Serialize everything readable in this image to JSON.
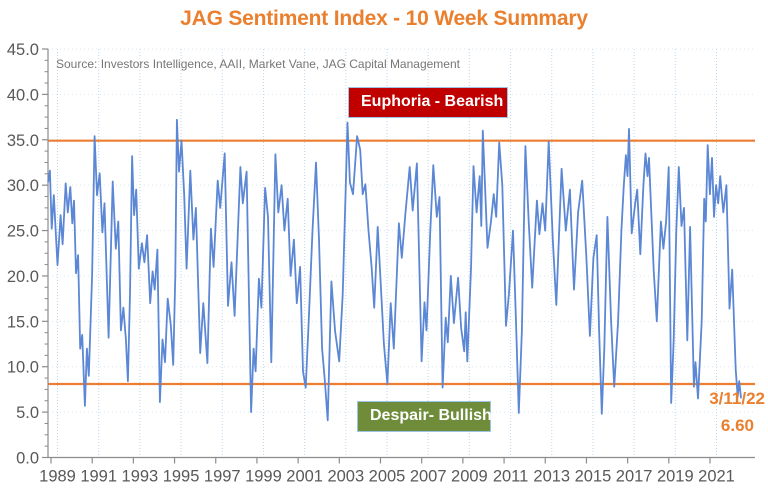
{
  "title": "JAG Sentiment Index - 10 Week Summary",
  "source_note": "Source: Investors Intelligence, AAII, Market Vane, JAG Capital Management",
  "colors": {
    "title_orange": "#EA7F2E",
    "threshold_orange": "#ED7D31",
    "series_blue": "#5B87D5",
    "euphoria_red": "#C00000",
    "despair_green": "#6F8C3B",
    "box_border_blue": "#9DC3E6",
    "grid_vertical": "#BDD7EE",
    "grid_horizontal": "#DAE7F5",
    "axis_gray": "#8C8C8C",
    "tick_label_gray": "#595959"
  },
  "annotation": {
    "date": "3/11/22",
    "value": "6.60"
  },
  "chart_data": {
    "type": "line",
    "title": "JAG Sentiment Index - 10 Week Summary",
    "xlabel": "",
    "ylabel": "",
    "x_ticks": [
      1989,
      1991,
      1993,
      1995,
      1997,
      1999,
      2001,
      2003,
      2005,
      2007,
      2009,
      2011,
      2013,
      2015,
      2017,
      2019,
      2021
    ],
    "y_ticks": [
      0,
      5,
      10,
      15,
      20,
      25,
      30,
      35,
      40,
      45
    ],
    "y_tick_labels": [
      "0.0",
      "5.0",
      "10.0",
      "15.0",
      "20.0",
      "25.0",
      "30.0",
      "35.0",
      "40.0",
      "45.0"
    ],
    "ylim": [
      0,
      45
    ],
    "xlim": [
      1988.5,
      2022.9
    ],
    "y_minor_step": 1.25,
    "grid": true,
    "legend_position": "none",
    "hlines": [
      {
        "name": "euphoria-threshold",
        "value": 34.9,
        "label": "Euphoria - Bearish"
      },
      {
        "name": "despair-threshold",
        "value": 8.1,
        "label": "Despair- Bullish"
      }
    ],
    "last_point": {
      "date": "3/11/22",
      "value": 6.6
    },
    "series": [
      {
        "name": "JAG Sentiment Index (10 week)",
        "points": [
          [
            1988.55,
            30.4
          ],
          [
            1988.63,
            31.6
          ],
          [
            1988.72,
            25.2
          ],
          [
            1988.82,
            28.9
          ],
          [
            1988.92,
            24.5
          ],
          [
            1989.0,
            21.2
          ],
          [
            1989.15,
            26.7
          ],
          [
            1989.25,
            23.5
          ],
          [
            1989.4,
            30.2
          ],
          [
            1989.5,
            27.0
          ],
          [
            1989.62,
            29.8
          ],
          [
            1989.72,
            25.8
          ],
          [
            1989.8,
            28.3
          ],
          [
            1989.9,
            20.3
          ],
          [
            1990.0,
            22.3
          ],
          [
            1990.1,
            12.0
          ],
          [
            1990.2,
            13.5
          ],
          [
            1990.33,
            5.7
          ],
          [
            1990.43,
            12.0
          ],
          [
            1990.52,
            9.0
          ],
          [
            1990.68,
            20.0
          ],
          [
            1990.8,
            35.4
          ],
          [
            1990.92,
            28.9
          ],
          [
            1991.05,
            31.3
          ],
          [
            1991.18,
            24.8
          ],
          [
            1991.28,
            28.0
          ],
          [
            1991.48,
            13.2
          ],
          [
            1991.68,
            30.4
          ],
          [
            1991.83,
            23.0
          ],
          [
            1991.95,
            26.0
          ],
          [
            1992.08,
            14.0
          ],
          [
            1992.2,
            16.5
          ],
          [
            1992.32,
            13.0
          ],
          [
            1992.42,
            8.4
          ],
          [
            1992.52,
            18.0
          ],
          [
            1992.62,
            33.2
          ],
          [
            1992.72,
            26.7
          ],
          [
            1992.82,
            29.5
          ],
          [
            1992.95,
            20.8
          ],
          [
            1993.1,
            23.6
          ],
          [
            1993.22,
            21.5
          ],
          [
            1993.35,
            24.5
          ],
          [
            1993.5,
            17.0
          ],
          [
            1993.62,
            20.5
          ],
          [
            1993.72,
            18.5
          ],
          [
            1993.85,
            22.9
          ],
          [
            1993.97,
            6.1
          ],
          [
            1994.1,
            13.0
          ],
          [
            1994.22,
            10.5
          ],
          [
            1994.35,
            17.5
          ],
          [
            1994.5,
            14.6
          ],
          [
            1994.62,
            10.2
          ],
          [
            1994.72,
            20.0
          ],
          [
            1994.8,
            37.2
          ],
          [
            1994.9,
            31.5
          ],
          [
            1995.02,
            34.9
          ],
          [
            1995.15,
            28.9
          ],
          [
            1995.27,
            20.8
          ],
          [
            1995.45,
            31.6
          ],
          [
            1995.6,
            24.0
          ],
          [
            1995.72,
            27.5
          ],
          [
            1995.93,
            11.5
          ],
          [
            1996.08,
            17.0
          ],
          [
            1996.28,
            10.4
          ],
          [
            1996.45,
            25.2
          ],
          [
            1996.58,
            21.0
          ],
          [
            1996.78,
            30.5
          ],
          [
            1996.9,
            27.5
          ],
          [
            1997.12,
            33.5
          ],
          [
            1997.28,
            16.7
          ],
          [
            1997.45,
            21.5
          ],
          [
            1997.6,
            15.6
          ],
          [
            1997.88,
            32.0
          ],
          [
            1998.0,
            28.0
          ],
          [
            1998.18,
            31.5
          ],
          [
            1998.4,
            5.0
          ],
          [
            1998.52,
            12.0
          ],
          [
            1998.62,
            9.5
          ],
          [
            1998.78,
            19.7
          ],
          [
            1998.9,
            16.5
          ],
          [
            1999.08,
            29.7
          ],
          [
            1999.22,
            26.5
          ],
          [
            1999.38,
            10.5
          ],
          [
            1999.58,
            33.4
          ],
          [
            1999.72,
            27.0
          ],
          [
            1999.88,
            30.0
          ],
          [
            2000.02,
            25.0
          ],
          [
            2000.18,
            28.5
          ],
          [
            2000.32,
            20.0
          ],
          [
            2000.48,
            24.0
          ],
          [
            2000.62,
            17.0
          ],
          [
            2000.78,
            21.0
          ],
          [
            2000.92,
            9.5
          ],
          [
            2001.05,
            7.7
          ],
          [
            2001.2,
            15.0
          ],
          [
            2001.38,
            25.0
          ],
          [
            2001.55,
            32.5
          ],
          [
            2001.7,
            24.0
          ],
          [
            2001.85,
            12.0
          ],
          [
            2001.98,
            8.5
          ],
          [
            2002.12,
            4.1
          ],
          [
            2002.3,
            19.4
          ],
          [
            2002.48,
            13.9
          ],
          [
            2002.68,
            10.6
          ],
          [
            2002.85,
            18.0
          ],
          [
            2003.0,
            30.0
          ],
          [
            2003.08,
            36.9
          ],
          [
            2003.2,
            30.3
          ],
          [
            2003.35,
            29.0
          ],
          [
            2003.55,
            35.4
          ],
          [
            2003.7,
            33.9
          ],
          [
            2003.82,
            29.0
          ],
          [
            2003.95,
            30.1
          ],
          [
            2004.1,
            25.0
          ],
          [
            2004.25,
            21.0
          ],
          [
            2004.38,
            16.5
          ],
          [
            2004.55,
            25.4
          ],
          [
            2004.7,
            19.0
          ],
          [
            2004.85,
            12.5
          ],
          [
            2005.02,
            8.1
          ],
          [
            2005.18,
            17.0
          ],
          [
            2005.33,
            12.0
          ],
          [
            2005.58,
            25.8
          ],
          [
            2005.72,
            22.0
          ],
          [
            2005.9,
            27.0
          ],
          [
            2006.1,
            32.0
          ],
          [
            2006.25,
            27.2
          ],
          [
            2006.45,
            32.4
          ],
          [
            2006.68,
            10.6
          ],
          [
            2006.82,
            17.1
          ],
          [
            2006.92,
            14.0
          ],
          [
            2007.1,
            25.0
          ],
          [
            2007.25,
            32.2
          ],
          [
            2007.42,
            26.5
          ],
          [
            2007.55,
            28.7
          ],
          [
            2007.7,
            7.7
          ],
          [
            2007.85,
            15.4
          ],
          [
            2007.95,
            12.7
          ],
          [
            2008.1,
            20.0
          ],
          [
            2008.25,
            14.8
          ],
          [
            2008.45,
            19.8
          ],
          [
            2008.6,
            14.3
          ],
          [
            2008.75,
            11.7
          ],
          [
            2008.82,
            16.0
          ],
          [
            2008.9,
            10.6
          ],
          [
            2009.08,
            20.8
          ],
          [
            2009.2,
            32.1
          ],
          [
            2009.35,
            27.0
          ],
          [
            2009.5,
            31.0
          ],
          [
            2009.58,
            25.5
          ],
          [
            2009.65,
            36.0
          ],
          [
            2009.88,
            23.1
          ],
          [
            2010.05,
            26.0
          ],
          [
            2010.18,
            29.0
          ],
          [
            2010.3,
            26.5
          ],
          [
            2010.45,
            34.7
          ],
          [
            2010.6,
            30.0
          ],
          [
            2010.78,
            14.5
          ],
          [
            2010.92,
            18.0
          ],
          [
            2011.0,
            20.9
          ],
          [
            2011.12,
            25.0
          ],
          [
            2011.25,
            16.0
          ],
          [
            2011.4,
            4.9
          ],
          [
            2011.55,
            14.0
          ],
          [
            2011.72,
            34.3
          ],
          [
            2011.88,
            26.0
          ],
          [
            2012.05,
            18.7
          ],
          [
            2012.28,
            28.3
          ],
          [
            2012.4,
            24.6
          ],
          [
            2012.55,
            28.0
          ],
          [
            2012.68,
            25.0
          ],
          [
            2012.85,
            34.8
          ],
          [
            2013.05,
            24.0
          ],
          [
            2013.22,
            16.8
          ],
          [
            2013.48,
            31.8
          ],
          [
            2013.68,
            25.0
          ],
          [
            2013.88,
            29.5
          ],
          [
            2014.08,
            18.5
          ],
          [
            2014.28,
            27.0
          ],
          [
            2014.48,
            30.5
          ],
          [
            2014.68,
            22.0
          ],
          [
            2014.85,
            13.4
          ],
          [
            2015.02,
            22.0
          ],
          [
            2015.18,
            24.5
          ],
          [
            2015.3,
            14.0
          ],
          [
            2015.43,
            4.8
          ],
          [
            2015.55,
            12.0
          ],
          [
            2015.7,
            26.5
          ],
          [
            2015.88,
            15.0
          ],
          [
            2016.03,
            7.8
          ],
          [
            2016.22,
            15.0
          ],
          [
            2016.38,
            25.0
          ],
          [
            2016.5,
            30.0
          ],
          [
            2016.6,
            33.3
          ],
          [
            2016.68,
            31.0
          ],
          [
            2016.75,
            36.2
          ],
          [
            2016.88,
            24.7
          ],
          [
            2017.05,
            28.0
          ],
          [
            2017.15,
            29.5
          ],
          [
            2017.3,
            22.4
          ],
          [
            2017.45,
            30.0
          ],
          [
            2017.55,
            33.5
          ],
          [
            2017.65,
            31.0
          ],
          [
            2017.72,
            33.0
          ],
          [
            2017.95,
            20.6
          ],
          [
            2018.1,
            15.0
          ],
          [
            2018.3,
            26.0
          ],
          [
            2018.42,
            23.0
          ],
          [
            2018.55,
            26.0
          ],
          [
            2018.68,
            32.0
          ],
          [
            2018.8,
            6.0
          ],
          [
            2018.92,
            13.0
          ],
          [
            2019.05,
            25.0
          ],
          [
            2019.17,
            32.0
          ],
          [
            2019.3,
            25.5
          ],
          [
            2019.42,
            27.5
          ],
          [
            2019.58,
            12.9
          ],
          [
            2019.72,
            25.4
          ],
          [
            2019.9,
            7.8
          ],
          [
            2019.98,
            10.5
          ],
          [
            2020.1,
            6.5
          ],
          [
            2020.28,
            15.0
          ],
          [
            2020.4,
            28.5
          ],
          [
            2020.48,
            26.0
          ],
          [
            2020.57,
            34.4
          ],
          [
            2020.68,
            29.0
          ],
          [
            2020.78,
            33.0
          ],
          [
            2020.88,
            26.5
          ],
          [
            2020.98,
            30.0
          ],
          [
            2021.08,
            28.0
          ],
          [
            2021.18,
            31.0
          ],
          [
            2021.33,
            27.0
          ],
          [
            2021.48,
            30.0
          ],
          [
            2021.63,
            16.4
          ],
          [
            2021.76,
            20.7
          ],
          [
            2021.93,
            9.7
          ],
          [
            2022.03,
            6.7
          ],
          [
            2022.1,
            8.4
          ],
          [
            2022.19,
            6.6
          ]
        ]
      }
    ]
  }
}
